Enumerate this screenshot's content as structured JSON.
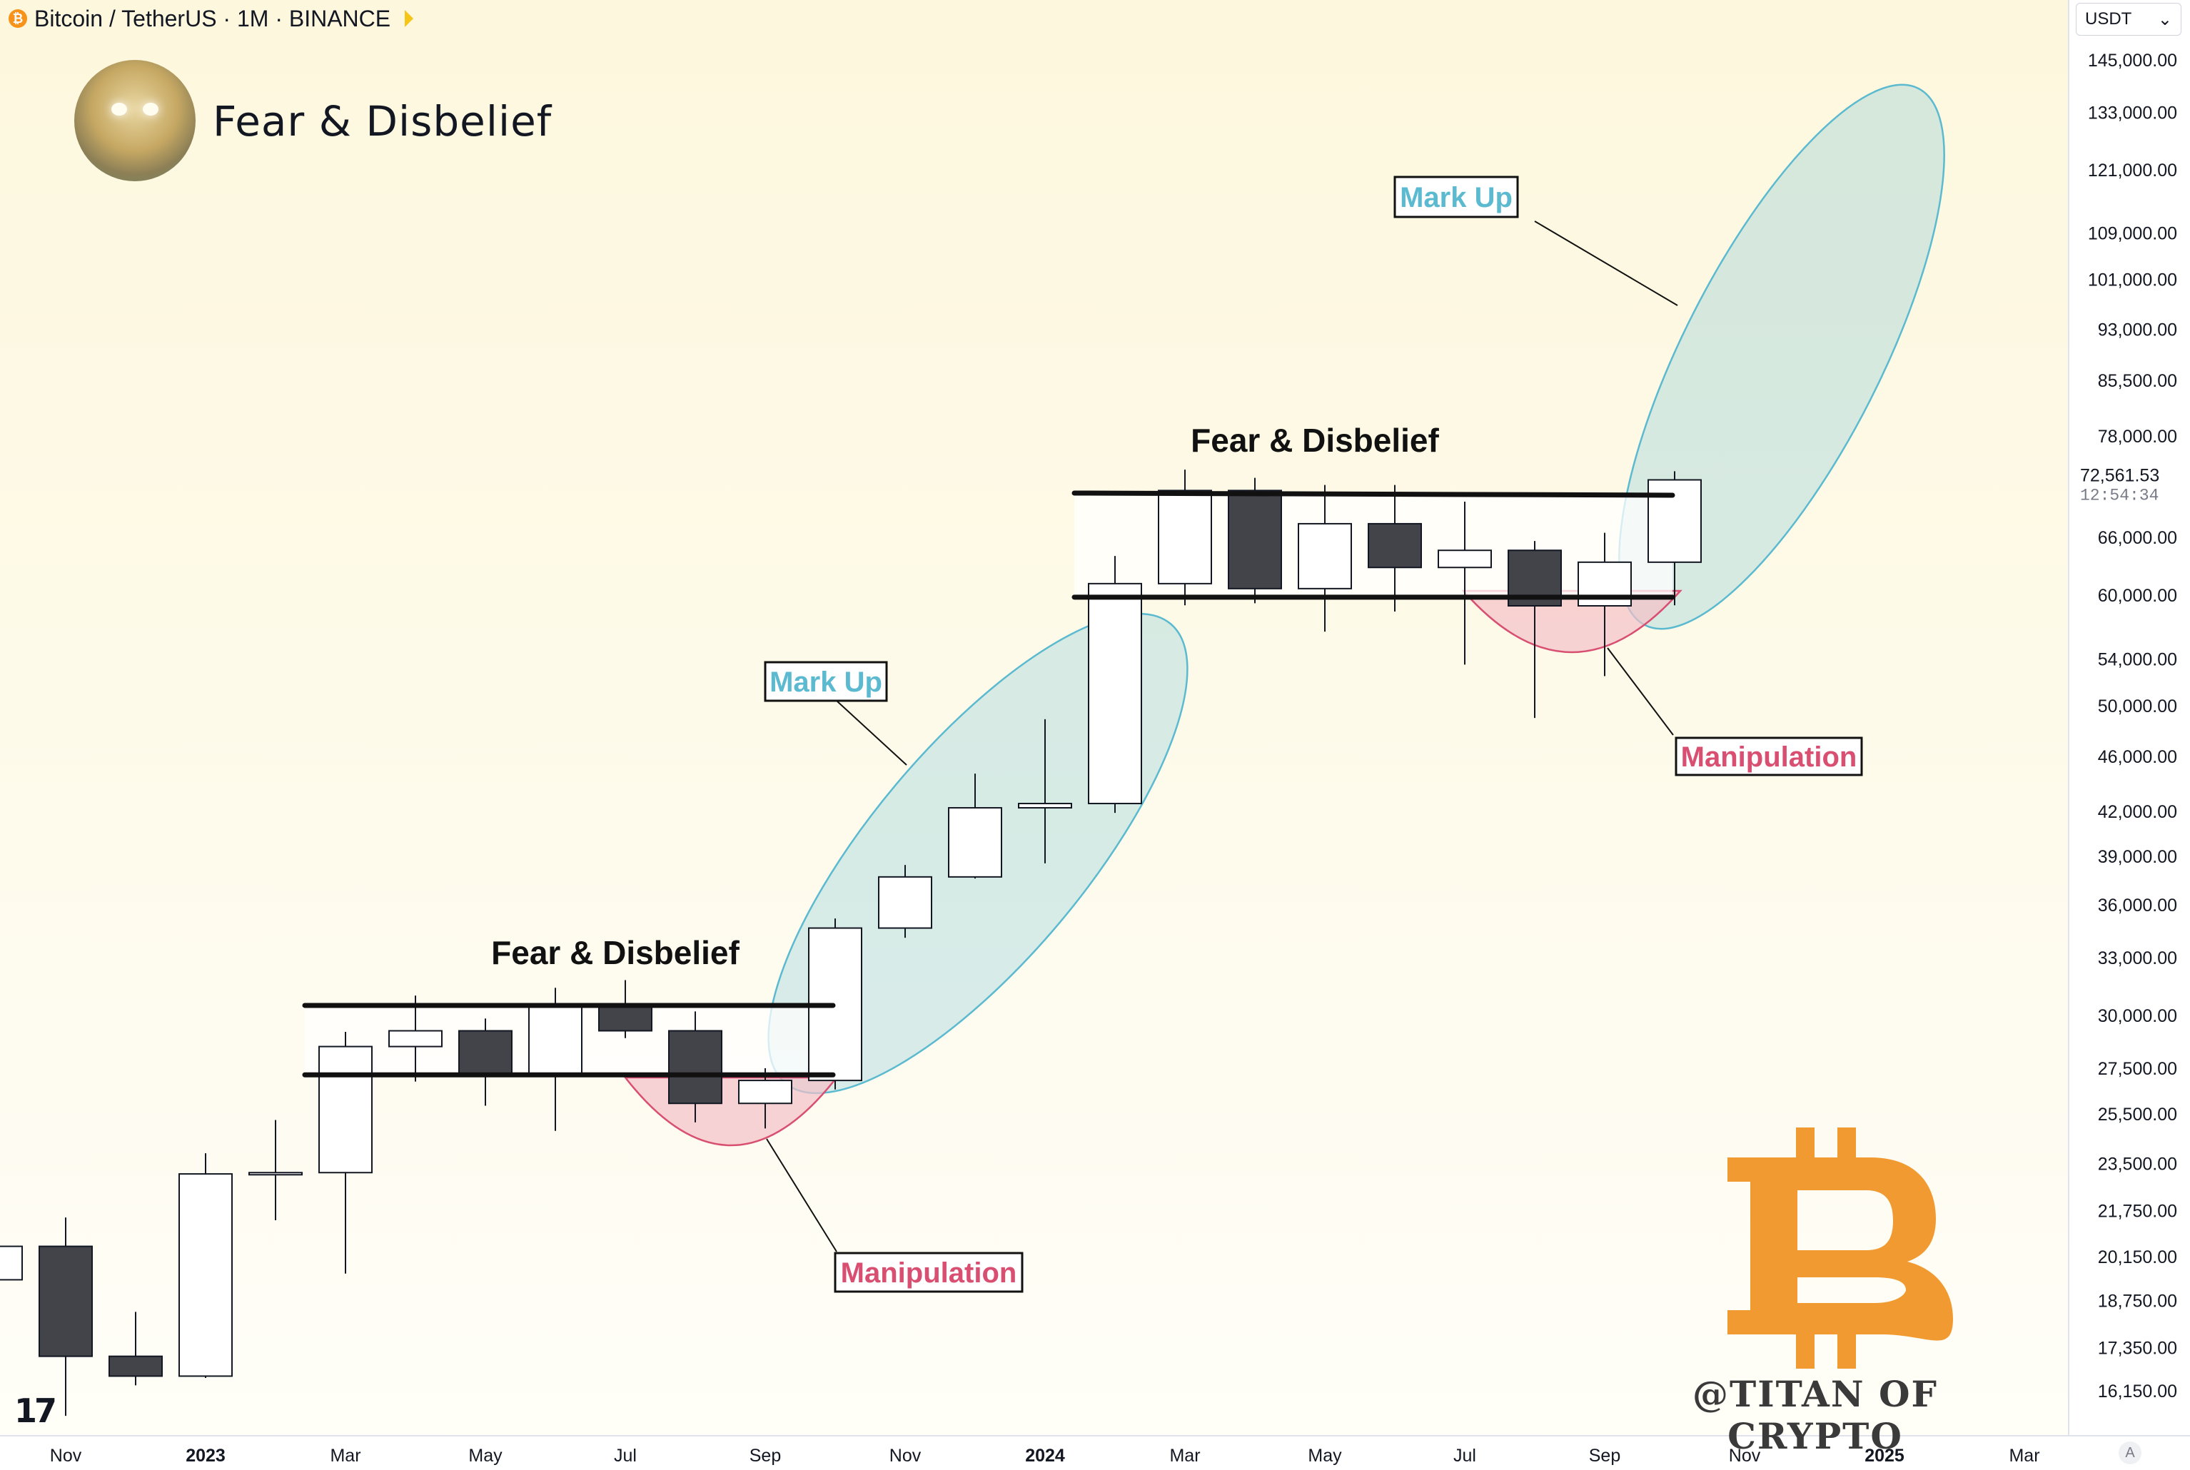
{
  "header": {
    "symbol": "Bitcoin / TetherUS · 1M · BINANCE",
    "coin_glyph": "₿"
  },
  "avatar": {
    "title": "Fear & Disbelief"
  },
  "price_scale": {
    "currency": "USDT",
    "ticks": [
      "145,000.00",
      "133,000.00",
      "121,000.00",
      "109,000.00",
      "101,000.00",
      "93,000.00",
      "85,500.00",
      "78,000.00",
      "66,000.00",
      "60,000.00",
      "54,000.00",
      "50,000.00",
      "46,000.00",
      "42,000.00",
      "39,000.00",
      "36,000.00",
      "33,000.00",
      "30,000.00",
      "27,500.00",
      "25,500.00",
      "23,500.00",
      "21,750.00",
      "20,150.00",
      "18,750.00",
      "17,350.00",
      "16,150.00"
    ],
    "last_price": "72,561.53",
    "countdown": "12:54:34"
  },
  "time_axis": {
    "labels": [
      {
        "text": "Nov",
        "bold": false
      },
      {
        "text": "2023",
        "bold": true
      },
      {
        "text": "Mar",
        "bold": false
      },
      {
        "text": "May",
        "bold": false
      },
      {
        "text": "Jul",
        "bold": false
      },
      {
        "text": "Sep",
        "bold": false
      },
      {
        "text": "Nov",
        "bold": false
      },
      {
        "text": "2024",
        "bold": true
      },
      {
        "text": "Mar",
        "bold": false
      },
      {
        "text": "May",
        "bold": false
      },
      {
        "text": "Jul",
        "bold": false
      },
      {
        "text": "Sep",
        "bold": false
      },
      {
        "text": "Nov",
        "bold": false
      },
      {
        "text": "2025",
        "bold": true
      },
      {
        "text": "Mar",
        "bold": false
      }
    ],
    "auto_label": "A"
  },
  "branding": {
    "tv_logo": "17",
    "watermark": "@TITAN OF CRYPTO",
    "btc_symbol": "B"
  },
  "chart_data": {
    "type": "candlestick",
    "title": "Bitcoin / TetherUS · 1M · BINANCE",
    "y_scale": "log",
    "ylim": [
      15000,
      150000
    ],
    "candles": [
      {
        "date": "2022-10",
        "open": 19400,
        "high": 20900,
        "low": 18200,
        "close": 20500
      },
      {
        "date": "2022-11",
        "open": 20500,
        "high": 21500,
        "low": 15500,
        "close": 17100
      },
      {
        "date": "2022-12",
        "open": 17100,
        "high": 18400,
        "low": 16300,
        "close": 16550
      },
      {
        "date": "2023-01",
        "open": 16550,
        "high": 23900,
        "low": 16500,
        "close": 23100
      },
      {
        "date": "2023-02",
        "open": 23100,
        "high": 25250,
        "low": 21400,
        "close": 23150
      },
      {
        "date": "2023-03",
        "open": 23150,
        "high": 29200,
        "low": 19600,
        "close": 28500
      },
      {
        "date": "2023-04",
        "open": 28500,
        "high": 31000,
        "low": 26900,
        "close": 29250
      },
      {
        "date": "2023-05",
        "open": 29250,
        "high": 29850,
        "low": 25850,
        "close": 27200
      },
      {
        "date": "2023-06",
        "open": 27200,
        "high": 31400,
        "low": 24800,
        "close": 30450
      },
      {
        "date": "2023-07",
        "open": 30450,
        "high": 31800,
        "low": 28900,
        "close": 29250
      },
      {
        "date": "2023-08",
        "open": 29250,
        "high": 30200,
        "low": 25150,
        "close": 25950
      },
      {
        "date": "2023-09",
        "open": 25950,
        "high": 27500,
        "low": 24900,
        "close": 26950
      },
      {
        "date": "2023-10",
        "open": 26950,
        "high": 35200,
        "low": 26550,
        "close": 34650
      },
      {
        "date": "2023-11",
        "open": 34650,
        "high": 38450,
        "low": 34100,
        "close": 37700
      },
      {
        "date": "2023-12",
        "open": 37700,
        "high": 44700,
        "low": 37600,
        "close": 42250
      },
      {
        "date": "2024-01",
        "open": 42250,
        "high": 48900,
        "low": 38550,
        "close": 42550
      },
      {
        "date": "2024-02",
        "open": 42550,
        "high": 64000,
        "low": 41900,
        "close": 61150
      },
      {
        "date": "2024-03",
        "open": 61150,
        "high": 73800,
        "low": 59000,
        "close": 71300
      },
      {
        "date": "2024-04",
        "open": 71300,
        "high": 72800,
        "low": 59200,
        "close": 60650
      },
      {
        "date": "2024-05",
        "open": 60650,
        "high": 71950,
        "low": 56500,
        "close": 67500
      },
      {
        "date": "2024-06",
        "open": 67500,
        "high": 71950,
        "low": 58400,
        "close": 62800
      },
      {
        "date": "2024-07",
        "open": 62800,
        "high": 70000,
        "low": 53500,
        "close": 64600
      },
      {
        "date": "2024-08",
        "open": 64600,
        "high": 65600,
        "low": 49000,
        "close": 58950
      },
      {
        "date": "2024-09",
        "open": 58950,
        "high": 66500,
        "low": 52500,
        "close": 63350
      },
      {
        "date": "2024-10",
        "open": 63350,
        "high": 73600,
        "low": 59000,
        "close": 72561.53
      }
    ],
    "ranges": [
      {
        "label": "Fear & Disbelief",
        "from": "2023-03",
        "to": "2023-10",
        "top": 30500,
        "bottom": 27200
      },
      {
        "label": "Fear & Disbelief",
        "from": "2024-02",
        "to": "2024-10",
        "top": 71000,
        "bottom": 59800
      }
    ],
    "annotations": [
      {
        "type": "ellipse",
        "label": "Mark Up",
        "color": "#5bbad0"
      },
      {
        "type": "ellipse",
        "label": "Mark Up",
        "color": "#5bbad0"
      },
      {
        "type": "arc",
        "label": "Manipulation",
        "color": "#d94f72"
      },
      {
        "type": "arc",
        "label": "Manipulation",
        "color": "#d94f72"
      }
    ],
    "colors": {
      "up": "#ffffff",
      "down": "#43434a",
      "outline": "#131722",
      "markup": "#5bbad0",
      "manipulation": "#d94f72"
    },
    "grid": false,
    "legend": "none"
  }
}
